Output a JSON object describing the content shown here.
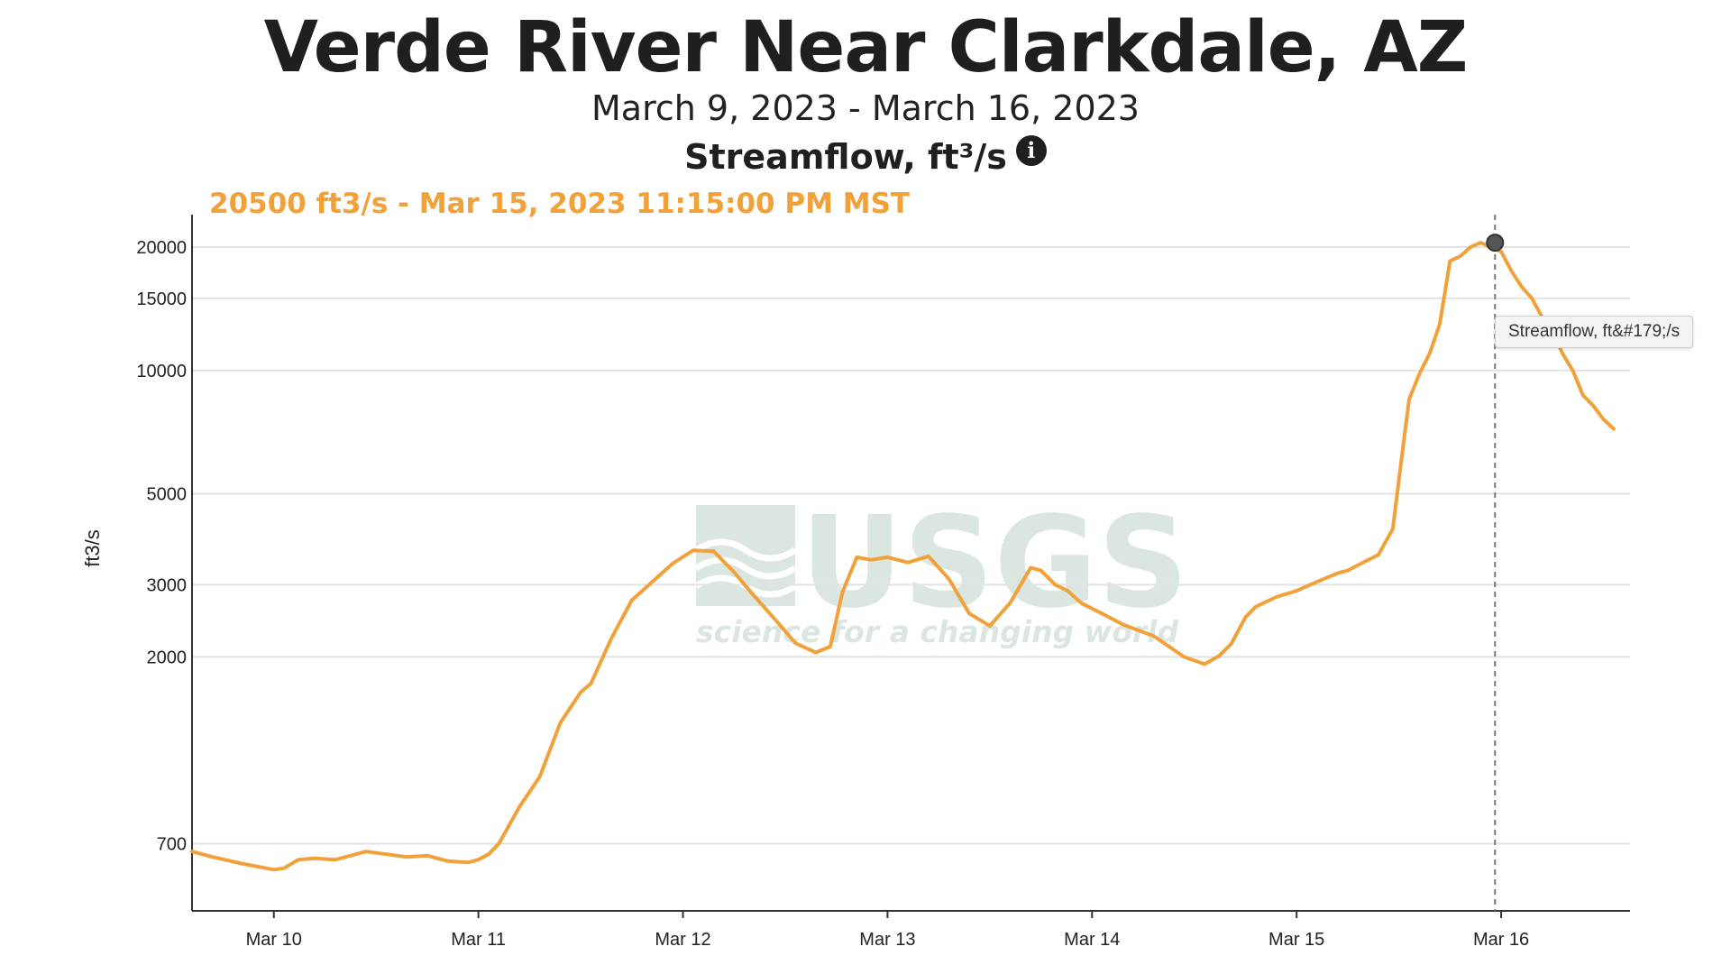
{
  "chart_data": {
    "type": "line",
    "title": "Verde River Near Clarkdale, AZ",
    "subtitle": "March 9, 2023 - March 16, 2023",
    "parameter": "Streamflow, ft³/s",
    "ylabel": "ft3/s",
    "xlabel": "",
    "yscale": "log",
    "ylim": [
      480,
      24000
    ],
    "xlim": [
      9.6,
      16.63
    ],
    "grid": true,
    "line_color": "#f0a13a",
    "x_ticks": [
      {
        "value": 10,
        "label": "Mar 10"
      },
      {
        "value": 11,
        "label": "Mar 11"
      },
      {
        "value": 12,
        "label": "Mar 12"
      },
      {
        "value": 13,
        "label": "Mar 13"
      },
      {
        "value": 14,
        "label": "Mar 14"
      },
      {
        "value": 15,
        "label": "Mar 15"
      },
      {
        "value": 16,
        "label": "Mar 16"
      }
    ],
    "y_ticks": [
      700,
      2000,
      3000,
      5000,
      10000,
      15000,
      20000
    ],
    "series": [
      {
        "x": [
          9.6,
          9.7,
          9.85,
          10.0,
          10.05,
          10.12,
          10.2,
          10.3,
          10.45,
          10.55,
          10.65,
          10.75,
          10.85,
          10.95,
          11.0,
          11.05,
          11.1,
          11.2,
          11.3,
          11.4,
          11.5,
          11.55,
          11.65,
          11.75,
          11.85,
          11.95,
          12.05,
          12.15,
          12.25,
          12.35,
          12.45,
          12.55,
          12.65,
          12.72,
          12.78,
          12.85,
          12.92,
          13.0,
          13.1,
          13.2,
          13.3,
          13.4,
          13.5,
          13.6,
          13.7,
          13.75,
          13.82,
          13.88,
          13.95,
          14.05,
          14.15,
          14.3,
          14.45,
          14.55,
          14.62,
          14.68,
          14.75,
          14.8,
          14.9,
          15.0,
          15.1,
          15.2,
          15.25,
          15.3,
          15.4,
          15.47,
          15.52,
          15.55,
          15.6,
          15.65,
          15.7,
          15.75,
          15.8,
          15.85,
          15.9,
          15.95,
          16.0,
          16.05,
          16.1,
          16.15,
          16.2,
          16.25,
          16.3,
          16.35,
          16.4,
          16.45,
          16.5,
          16.55
        ],
        "y": [
          670,
          650,
          625,
          605,
          610,
          640,
          645,
          640,
          670,
          660,
          650,
          655,
          635,
          630,
          640,
          660,
          700,
          860,
          1020,
          1380,
          1640,
          1720,
          2220,
          2750,
          3050,
          3380,
          3640,
          3620,
          3220,
          2810,
          2470,
          2160,
          2050,
          2120,
          2880,
          3500,
          3450,
          3500,
          3400,
          3520,
          3100,
          2550,
          2380,
          2710,
          3300,
          3250,
          3000,
          2900,
          2700,
          2550,
          2400,
          2250,
          2000,
          1920,
          2010,
          2150,
          2500,
          2650,
          2800,
          2900,
          3050,
          3200,
          3250,
          3350,
          3550,
          4100,
          6500,
          8500,
          9800,
          11000,
          13000,
          18500,
          19000,
          20000,
          20500,
          20000,
          19500,
          17500,
          16000,
          15000,
          13500,
          12500,
          11000,
          10000,
          8700,
          8200,
          7600,
          7200
        ]
      }
    ],
    "highlight": {
      "x": 15.97,
      "y": 20500
    },
    "readout": "20500 ft3/s - Mar 15, 2023 11:15:00 PM MST",
    "tooltip": "Streamflow, ft&#179;/s",
    "watermark": {
      "name": "USGS",
      "tagline": "science for a changing world"
    }
  }
}
